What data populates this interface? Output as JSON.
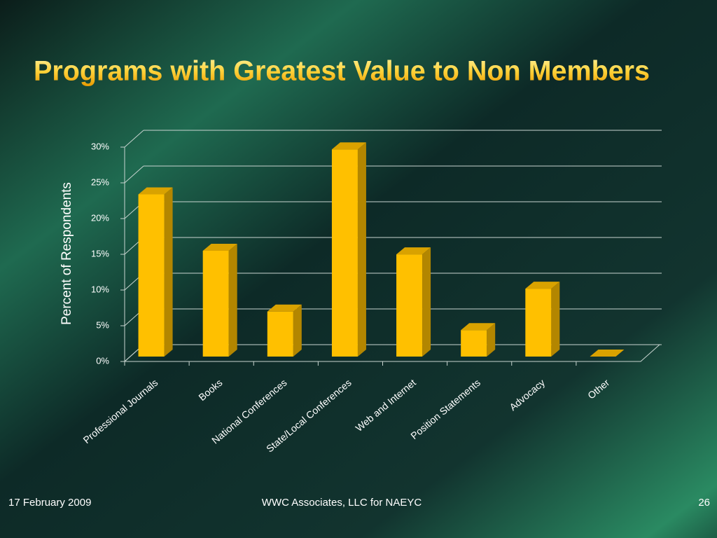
{
  "chart_data": {
    "type": "bar3d",
    "title": "Programs with Greatest Value to Non Members",
    "y_label": "Percent of Respondents",
    "categories": [
      "Professional Journals",
      "Books",
      "National Conferences",
      "State/Local Conferences",
      "Web and Internet",
      "Position Statements",
      "Advocacy",
      "Other"
    ],
    "values": [
      22.7,
      14.8,
      6.3,
      29,
      14.3,
      3.7,
      9.5,
      0
    ],
    "color": "#ffc000",
    "ylim": [
      0,
      30
    ],
    "yticks": [
      {
        "value": 0,
        "label": "0%"
      },
      {
        "value": 5,
        "label": "5%"
      },
      {
        "value": 10,
        "label": "10%"
      },
      {
        "value": 15,
        "label": "15%"
      },
      {
        "value": 20,
        "label": "20%"
      },
      {
        "value": 25,
        "label": "25%"
      },
      {
        "value": 30,
        "label": "30%"
      }
    ],
    "grid": true
  },
  "footer": {
    "date": "17 February 2009",
    "center": "WWC Associates, LLC for NAEYC",
    "page": "26"
  }
}
